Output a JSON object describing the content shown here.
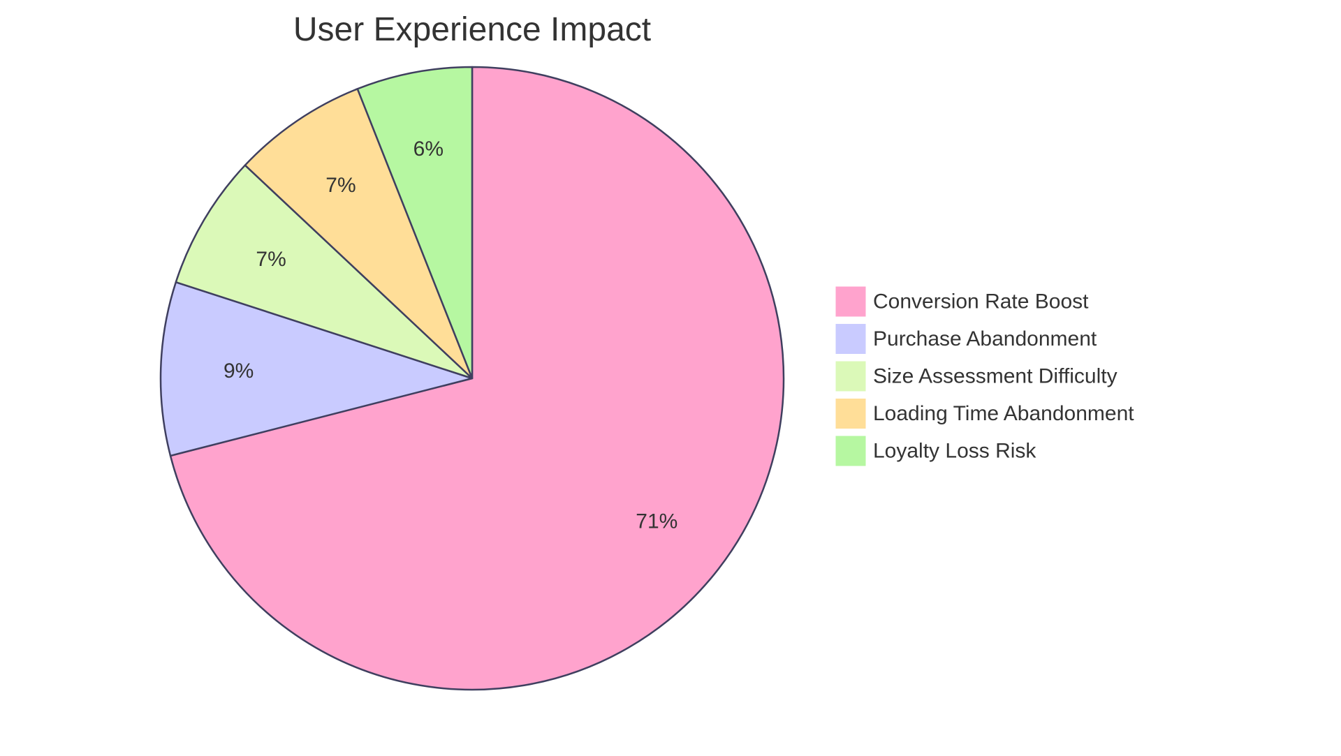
{
  "chart_data": {
    "type": "pie",
    "title": "User Experience Impact",
    "start_angle_deg": 0,
    "direction": "clockwise",
    "categories": [
      "Conversion Rate Boost",
      "Purchase Abandonment",
      "Size Assessment Difficulty",
      "Loading Time Abandonment",
      "Loyalty Loss Risk"
    ],
    "values": [
      71,
      9,
      7,
      7,
      6
    ],
    "labels": [
      "71%",
      "9%",
      "7%",
      "7%",
      "6%"
    ],
    "colors": [
      "#FFA3CD",
      "#C9CBFF",
      "#DBF9B8",
      "#FFDE98",
      "#B6F7A1"
    ],
    "stroke_color": "#3F3F5F",
    "legend_position": "right"
  }
}
